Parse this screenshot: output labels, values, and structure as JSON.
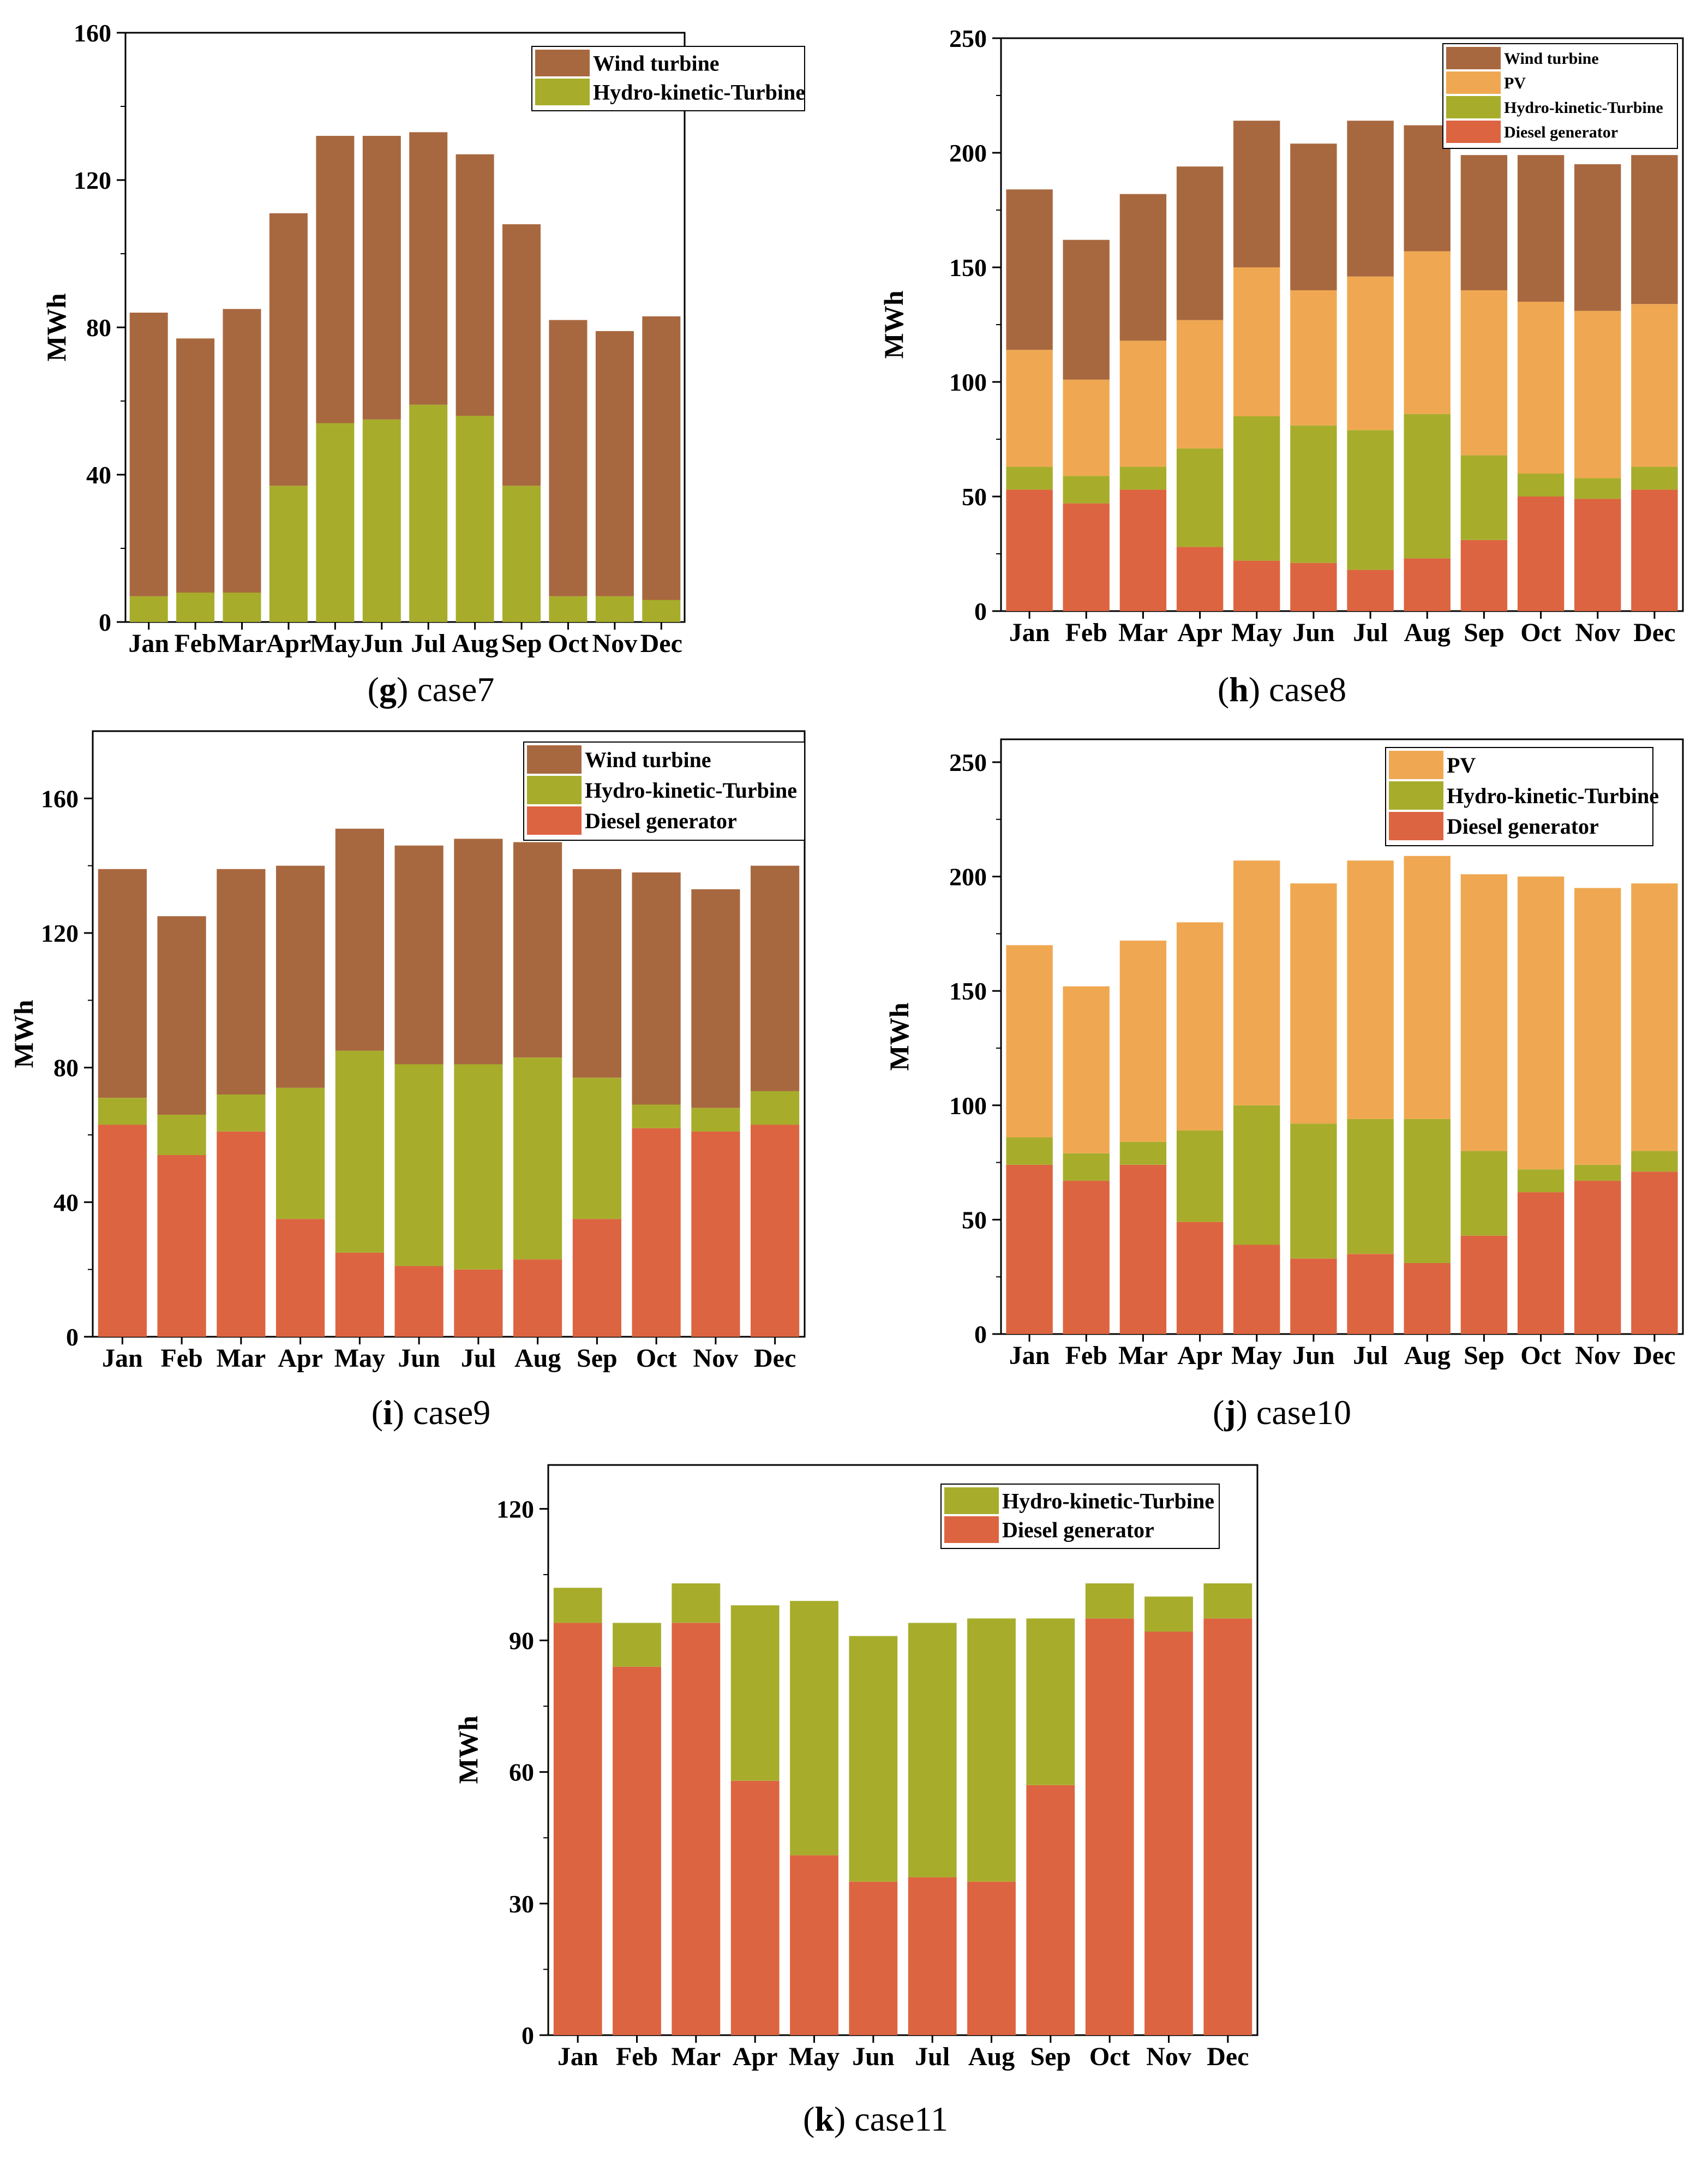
{
  "chart_data": [
    {
      "type": "bar",
      "stacked": true,
      "caption_letter": "g",
      "caption_text": "case7",
      "ylabel": "MWh",
      "xlabel": "",
      "ylim": [
        0,
        160
      ],
      "yticks": [
        0,
        40,
        80,
        120,
        160
      ],
      "categories": [
        "Jan",
        "Feb",
        "Mar",
        "Apr",
        "May",
        "Jun",
        "Jul",
        "Aug",
        "Sep",
        "Oct",
        "Nov",
        "Dec"
      ],
      "series": [
        {
          "name": "Hydro-kinetic-Turbine",
          "color": "#a7ad2b",
          "values": [
            7,
            8,
            8,
            37,
            54,
            55,
            59,
            56,
            37,
            7,
            7,
            6
          ]
        },
        {
          "name": "Wind turbine",
          "color": "#a8683f",
          "values": [
            77,
            69,
            77,
            74,
            78,
            77,
            74,
            71,
            71,
            75,
            72,
            77
          ]
        }
      ],
      "legend_order": [
        "Wind turbine",
        "Hydro-kinetic-Turbine"
      ],
      "legend": "top-right",
      "grid": false
    },
    {
      "type": "bar",
      "stacked": true,
      "caption_letter": "h",
      "caption_text": "case8",
      "ylabel": "MWh",
      "xlabel": "",
      "ylim": [
        0,
        250
      ],
      "yticks": [
        0,
        50,
        100,
        150,
        200,
        250
      ],
      "categories": [
        "Jan",
        "Feb",
        "Mar",
        "Apr",
        "May",
        "Jun",
        "Jul",
        "Aug",
        "Sep",
        "Oct",
        "Nov",
        "Dec"
      ],
      "series": [
        {
          "name": "Diesel generator",
          "color": "#dd6440",
          "values": [
            53,
            47,
            53,
            28,
            22,
            21,
            18,
            23,
            31,
            50,
            49,
            53
          ]
        },
        {
          "name": "Hydro-kinetic-Turbine",
          "color": "#a7ad2b",
          "values": [
            10,
            12,
            10,
            43,
            63,
            60,
            61,
            63,
            37,
            10,
            9,
            10
          ]
        },
        {
          "name": "PV",
          "color": "#efa851",
          "values": [
            51,
            42,
            55,
            56,
            65,
            59,
            67,
            71,
            72,
            75,
            73,
            71
          ]
        },
        {
          "name": "Wind turbine",
          "color": "#a8683f",
          "values": [
            70,
            61,
            64,
            67,
            64,
            64,
            68,
            55,
            59,
            64,
            64,
            65
          ]
        }
      ],
      "legend_order": [
        "Wind turbine",
        "PV",
        "Hydro-kinetic-Turbine",
        "Diesel generator"
      ],
      "legend": "top-right",
      "grid": false
    },
    {
      "type": "bar",
      "stacked": true,
      "caption_letter": "i",
      "caption_text": "case9",
      "ylabel": "MWh",
      "xlabel": "",
      "ylim": [
        0,
        180
      ],
      "yticks": [
        0,
        40,
        80,
        120,
        160
      ],
      "categories": [
        "Jan",
        "Feb",
        "Mar",
        "Apr",
        "May",
        "Jun",
        "Jul",
        "Aug",
        "Sep",
        "Oct",
        "Nov",
        "Dec"
      ],
      "series": [
        {
          "name": "Diesel generator",
          "color": "#dd6440",
          "values": [
            63,
            54,
            61,
            35,
            25,
            21,
            20,
            23,
            35,
            62,
            61,
            63
          ]
        },
        {
          "name": "Hydro-kinetic-Turbine",
          "color": "#a7ad2b",
          "values": [
            8,
            12,
            11,
            39,
            60,
            60,
            61,
            60,
            42,
            7,
            7,
            10
          ]
        },
        {
          "name": "Wind turbine",
          "color": "#a8683f",
          "values": [
            68,
            59,
            67,
            66,
            66,
            65,
            67,
            64,
            62,
            69,
            65,
            67
          ]
        }
      ],
      "legend_order": [
        "Wind turbine",
        "Hydro-kinetic-Turbine",
        "Diesel generator"
      ],
      "legend": "top-right",
      "grid": false
    },
    {
      "type": "bar",
      "stacked": true,
      "caption_letter": "j",
      "caption_text": "case10",
      "ylabel": "MWh",
      "xlabel": "",
      "ylim": [
        0,
        260
      ],
      "yticks": [
        0,
        50,
        100,
        150,
        200,
        250
      ],
      "categories": [
        "Jan",
        "Feb",
        "Mar",
        "Apr",
        "May",
        "Jun",
        "Jul",
        "Aug",
        "Sep",
        "Oct",
        "Nov",
        "Dec"
      ],
      "series": [
        {
          "name": "Diesel generator",
          "color": "#dd6440",
          "values": [
            74,
            67,
            74,
            49,
            39,
            33,
            35,
            31,
            43,
            62,
            67,
            71
          ]
        },
        {
          "name": "Hydro-kinetic-Turbine",
          "color": "#a7ad2b",
          "values": [
            12,
            12,
            10,
            40,
            61,
            59,
            59,
            63,
            37,
            10,
            7,
            9
          ]
        },
        {
          "name": "PV",
          "color": "#efa851",
          "values": [
            84,
            73,
            88,
            91,
            107,
            105,
            113,
            115,
            121,
            128,
            121,
            117
          ]
        }
      ],
      "legend_order": [
        "PV",
        "Hydro-kinetic-Turbine",
        "Diesel generator"
      ],
      "legend": "top-right",
      "grid": false
    },
    {
      "type": "bar",
      "stacked": true,
      "caption_letter": "k",
      "caption_text": "case11",
      "ylabel": "MWh",
      "xlabel": "",
      "ylim": [
        0,
        130
      ],
      "yticks": [
        0,
        30,
        60,
        90,
        120
      ],
      "categories": [
        "Jan",
        "Feb",
        "Mar",
        "Apr",
        "May",
        "Jun",
        "Jul",
        "Aug",
        "Sep",
        "Oct",
        "Nov",
        "Dec"
      ],
      "series": [
        {
          "name": "Diesel generator",
          "color": "#dd6440",
          "values": [
            94,
            84,
            94,
            58,
            41,
            35,
            36,
            35,
            57,
            95,
            92,
            95
          ]
        },
        {
          "name": "Hydro-kinetic-Turbine",
          "color": "#a7ad2b",
          "values": [
            8,
            10,
            9,
            40,
            58,
            56,
            58,
            60,
            38,
            8,
            8,
            8
          ]
        }
      ],
      "legend_order": [
        "Hydro-kinetic-Turbine",
        "Diesel generator"
      ],
      "legend": "top-right",
      "grid": false
    }
  ]
}
